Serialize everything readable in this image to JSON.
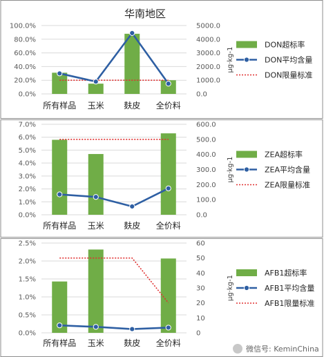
{
  "title": "华南地区",
  "watermark": "微信号: KeminChina",
  "colors": {
    "bar": "#70ad47",
    "line": "#2e5fa3",
    "limit": "#e03131"
  },
  "chart_data": [
    {
      "type": "bar",
      "categories": [
        "所有样品",
        "玉米",
        "麸皮",
        "全价料"
      ],
      "bar_series": {
        "name": "DON超标率",
        "values": [
          0.31,
          0.15,
          0.88,
          0.2
        ]
      },
      "line_series": {
        "name": "DON平均含量",
        "values": [
          1500,
          900,
          4450,
          750
        ]
      },
      "limit_series": {
        "name": "DON限量标准",
        "values": [
          1000,
          1000,
          1000,
          1000
        ]
      },
      "y_left": {
        "min": 0,
        "max": 1.0,
        "step": 0.2,
        "labels": [
          "0.0%",
          "20.0%",
          "40.0%",
          "60.0%",
          "80.0%",
          "100.0%"
        ]
      },
      "y_right": {
        "min": 0,
        "max": 5000,
        "step": 1000,
        "labels": [
          "0.0",
          "1000.0",
          "2000.0",
          "3000.0",
          "4000.0",
          "5000.0"
        ]
      },
      "unit": "μg·kg-1"
    },
    {
      "type": "bar",
      "categories": [
        "所有样品",
        "玉米",
        "麸皮",
        "全价料"
      ],
      "bar_series": {
        "name": "ZEA超标率",
        "values": [
          0.058,
          0.047,
          0.0,
          0.063
        ]
      },
      "line_series": {
        "name": "ZEA平均含量",
        "values": [
          135,
          118,
          55,
          175
        ]
      },
      "limit_series": {
        "name": "ZEA限量标准",
        "values": [
          500,
          500,
          500,
          500
        ]
      },
      "y_left": {
        "min": 0,
        "max": 0.07,
        "step": 0.01,
        "labels": [
          "0.0%",
          "1.0%",
          "2.0%",
          "3.0%",
          "4.0%",
          "5.0%",
          "6.0%",
          "7.0%"
        ]
      },
      "y_right": {
        "min": 0,
        "max": 600,
        "step": 100,
        "labels": [
          "0.0",
          "100.0",
          "200.0",
          "300.0",
          "400.0",
          "500.0",
          "600.0"
        ]
      },
      "unit": "μg·kg-1"
    },
    {
      "type": "bar",
      "categories": [
        "所有样品",
        "玉米",
        "麸皮",
        "全价料"
      ],
      "bar_series": {
        "name": "AFB1超标率",
        "values": [
          0.0143,
          0.0232,
          0.0,
          0.0207
        ]
      },
      "line_series": {
        "name": "AFB1平均含量",
        "values": [
          5,
          4,
          2.5,
          3.5
        ]
      },
      "limit_series": {
        "name": "AFB1限量标准",
        "values": [
          50,
          50,
          50,
          20
        ]
      },
      "y_left": {
        "min": 0,
        "max": 0.025,
        "step": 0.005,
        "labels": [
          "0.0%",
          "0.5%",
          "1.0%",
          "1.5%",
          "2.0%",
          "2.5%"
        ]
      },
      "y_right": {
        "min": 0,
        "max": 60,
        "step": 10,
        "labels": [
          "0",
          "10",
          "20",
          "30",
          "40",
          "50",
          "60"
        ]
      },
      "unit": "μg·kg-1"
    }
  ]
}
